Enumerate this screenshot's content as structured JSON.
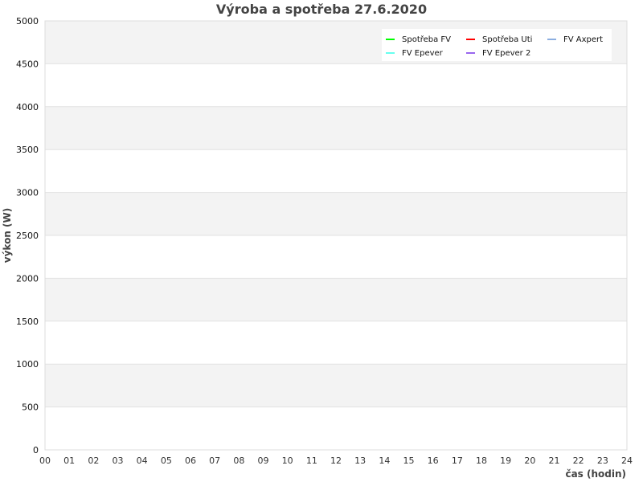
{
  "chart_data": {
    "type": "line",
    "title": "Výroba a spotřeba 27.6.2020",
    "xlabel": "čas (hodin)",
    "ylabel": "výkon (W)",
    "xlim": [
      0,
      24
    ],
    "ylim": [
      0,
      5000
    ],
    "x_ticks": [
      "00",
      "01",
      "02",
      "03",
      "04",
      "05",
      "06",
      "07",
      "08",
      "09",
      "10",
      "11",
      "12",
      "13",
      "14",
      "15",
      "16",
      "17",
      "18",
      "19",
      "20",
      "21",
      "22",
      "23",
      "24"
    ],
    "y_ticks": [
      0,
      500,
      1000,
      1500,
      2000,
      2500,
      3000,
      3500,
      4000,
      4500,
      5000
    ],
    "grid": true,
    "legend_position": "top-right",
    "series": [
      {
        "name": "Spotřeba FV",
        "color": "#00ff00",
        "values": []
      },
      {
        "name": "Spotřeba Uti",
        "color": "#ff0000",
        "values": []
      },
      {
        "name": "FV Axpert",
        "color": "#8caee0",
        "values": []
      },
      {
        "name": "FV Epever",
        "color": "#66ffee",
        "values": []
      },
      {
        "name": "FV Epever 2",
        "color": "#9966ee",
        "values": []
      }
    ]
  }
}
